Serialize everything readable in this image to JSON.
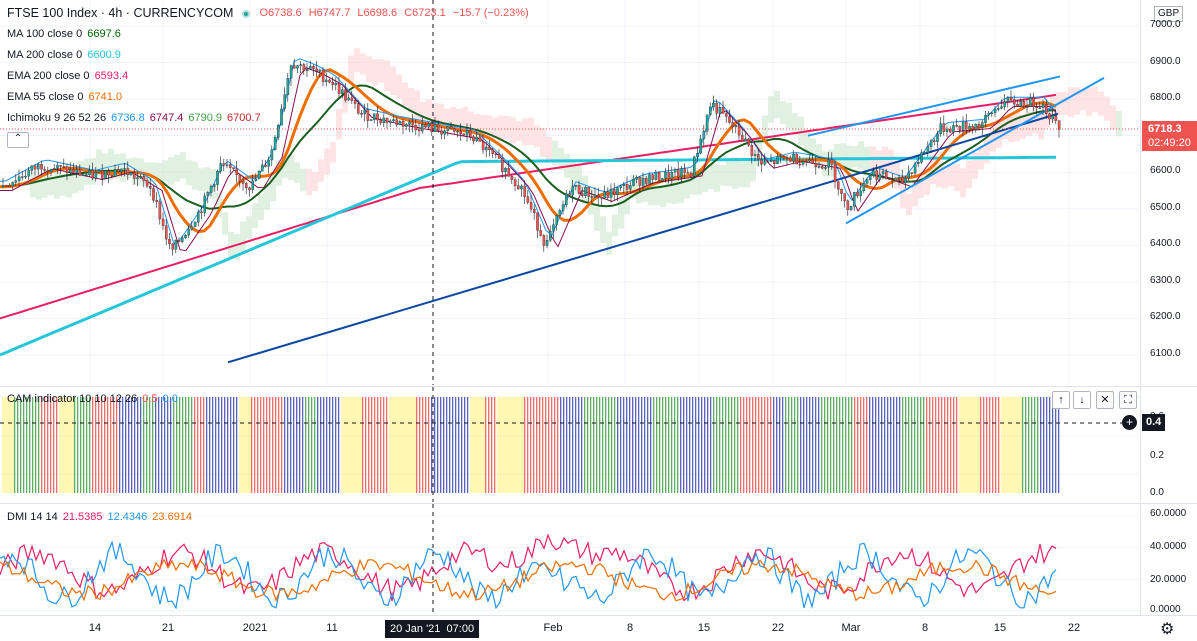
{
  "header": {
    "symbol": "FTSE 100 Index · 4h · CURRENCYCOM",
    "ohlc": {
      "o": "O6738.6",
      "h": "H6747.7",
      "l": "L6698.6",
      "c": "C6723.1",
      "chg": "−15.7 (−0.23%)"
    },
    "currency": "GBP"
  },
  "indicators": [
    {
      "label": "MA 100 close 0",
      "value": "6697.6",
      "color": "#006400"
    },
    {
      "label": "MA 200 close 0",
      "value": "6600.9",
      "color": "#26c6da"
    },
    {
      "label": "EMA 200 close 0",
      "value": "6593.4",
      "color": "#e91e63"
    },
    {
      "label": "EMA 55 close 0",
      "value": "6741.0",
      "color": "#ef6c00"
    }
  ],
  "ichimoku": {
    "label": "Ichimoku 9 26 52 26",
    "values": [
      {
        "v": "6736.8",
        "color": "#2196f3"
      },
      {
        "v": "6747.4",
        "color": "#880e4f"
      },
      {
        "v": "6790.9",
        "color": "#43a047"
      },
      {
        "v": "6700.7",
        "color": "#c62828"
      }
    ]
  },
  "price_axis": {
    "labels": [
      "7000.0",
      "6900.0",
      "6800.0",
      "6700.0",
      "6600.0",
      "6500.0",
      "6400.0",
      "6300.0",
      "6200.0",
      "6100.0"
    ],
    "last_price": "6718.3",
    "countdown": "02:49:20"
  },
  "cam": {
    "label": "CAM indicator 10 10 12 26",
    "v1": "0.5",
    "v2": "0.0",
    "axis": [
      "0.6",
      "0.4",
      "0.2",
      "0.0"
    ],
    "crosshair_value": "0.4"
  },
  "dmi": {
    "label": "DMI 14 14",
    "values": [
      {
        "v": "21.5385",
        "color": "#e91e63"
      },
      {
        "v": "12.4346",
        "color": "#2196f3"
      },
      {
        "v": "23.6914",
        "color": "#ef6c00"
      }
    ],
    "axis": [
      "60.0000",
      "40.0000",
      "20.0000",
      "0.0000"
    ]
  },
  "time_axis": {
    "labels": [
      "14",
      "21",
      "2021",
      "11",
      "Feb",
      "8",
      "15",
      "22",
      "Mar",
      "8",
      "15",
      "22"
    ],
    "crosshair_label": "20 Jan '21",
    "crosshair_time": "07:00"
  },
  "pane_buttons": {
    "up": "↑",
    "down": "↓",
    "close": "✕",
    "maximize": "⛶"
  },
  "colors": {
    "up": "#26a69a",
    "down": "#ef5350",
    "bg": "#ffffff",
    "grid": "#f0f3fa",
    "trend_dark": "#0d47a1",
    "trend_light": "#2196f3"
  },
  "icons": {
    "settings": "gear-icon",
    "add": "plus-circle-icon"
  }
}
